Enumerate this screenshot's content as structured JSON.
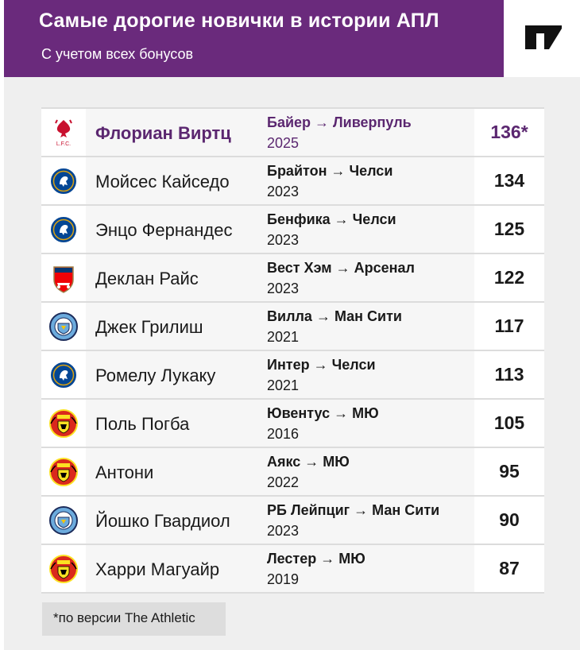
{
  "header": {
    "title": "Самые дорогие новички в истории АПЛ",
    "subtitle": "С учетом всех бонусов",
    "brand_logo": "the-athletic-logo"
  },
  "colors": {
    "accent": "#6a2a7c",
    "highlight_text": "#5b2770"
  },
  "chart_data": {
    "type": "table",
    "title": "Самые дорогие новички в истории АПЛ",
    "subtitle": "С учетом всех бонусов",
    "columns": [
      "club_crest",
      "player",
      "transfer",
      "year",
      "fee"
    ],
    "rows": [
      {
        "crest": "liverpool-crest",
        "player": "Флориан Виртц",
        "transfer": "Байер → Ливерпуль",
        "year": "2025",
        "fee": "136*",
        "value": 136,
        "highlight": true
      },
      {
        "crest": "chelsea-crest",
        "player": "Мойсес Кайседо",
        "transfer": "Брайтон → Челси",
        "year": "2023",
        "fee": "134",
        "value": 134
      },
      {
        "crest": "chelsea-crest",
        "player": "Энцо Фернандес",
        "transfer": "Бенфика → Челси",
        "year": "2023",
        "fee": "125",
        "value": 125
      },
      {
        "crest": "arsenal-crest",
        "player": "Деклан Райс",
        "transfer": "Вест Хэм → Арсенал",
        "year": "2023",
        "fee": "122",
        "value": 122
      },
      {
        "crest": "man-city-crest",
        "player": "Джек Грилиш",
        "transfer": "Вилла → Ман Сити",
        "year": "2021",
        "fee": "117",
        "value": 117
      },
      {
        "crest": "chelsea-crest",
        "player": "Ромелу Лукаку",
        "transfer": "Интер → Челси",
        "year": "2021",
        "fee": "113",
        "value": 113
      },
      {
        "crest": "man-united-crest",
        "player": "Поль Погба",
        "transfer": "Ювентус → МЮ",
        "year": "2016",
        "fee": "105",
        "value": 105
      },
      {
        "crest": "man-united-crest",
        "player": "Антони",
        "transfer": "Аякс → МЮ",
        "year": "2022",
        "fee": "95",
        "value": 95
      },
      {
        "crest": "man-city-crest",
        "player": "Йошко Гвардиол",
        "transfer": "РБ Лейпциг → Ман Сити",
        "year": "2023",
        "fee": "90",
        "value": 90
      },
      {
        "crest": "man-united-crest",
        "player": "Харри Магуайр",
        "transfer": "Лестер → МЮ",
        "year": "2019",
        "fee": "87",
        "value": 87
      }
    ]
  },
  "footnote": "*по версии The Athletic"
}
